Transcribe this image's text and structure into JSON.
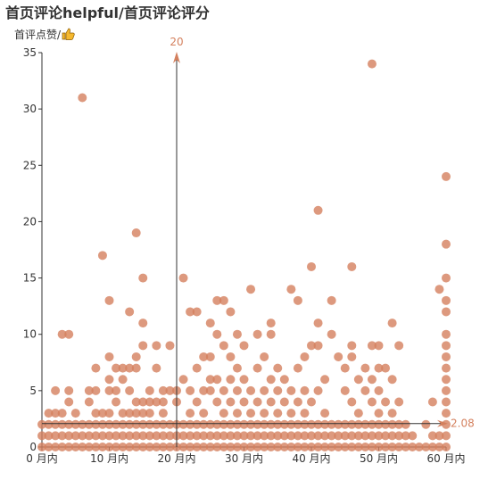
{
  "chart_data": {
    "type": "scatter",
    "title": "首页评论helpful/首页评论评分",
    "ylabel": "首评点赞/",
    "ylabel_icon": "thumbs-up-icon",
    "xlabel": "",
    "x_tick_labels": [
      "0 月内",
      "10 月内",
      "20 月内",
      "30 月内",
      "40 月内",
      "50 月内",
      "60 月内"
    ],
    "xlim": [
      0,
      60
    ],
    "ylim": [
      0,
      35
    ],
    "y_ticks": [
      0,
      5,
      10,
      15,
      20,
      25,
      30,
      35
    ],
    "grid": false,
    "point_color": "#d4805e",
    "mark_lines": [
      {
        "axis": "x",
        "value": 20,
        "label": "20"
      },
      {
        "axis": "y",
        "value": 2.08,
        "label": "2.08"
      }
    ],
    "points": [
      [
        0,
        0
      ],
      [
        0,
        1
      ],
      [
        0,
        2
      ],
      [
        1,
        0
      ],
      [
        1,
        1
      ],
      [
        1,
        2
      ],
      [
        1,
        3
      ],
      [
        2,
        0
      ],
      [
        2,
        1
      ],
      [
        2,
        2
      ],
      [
        2,
        3
      ],
      [
        2,
        5
      ],
      [
        3,
        0
      ],
      [
        3,
        1
      ],
      [
        3,
        2
      ],
      [
        3,
        3
      ],
      [
        3,
        10
      ],
      [
        4,
        0
      ],
      [
        4,
        1
      ],
      [
        4,
        2
      ],
      [
        4,
        4
      ],
      [
        4,
        5
      ],
      [
        4,
        10
      ],
      [
        5,
        0
      ],
      [
        5,
        1
      ],
      [
        5,
        2
      ],
      [
        5,
        3
      ],
      [
        6,
        0
      ],
      [
        6,
        1
      ],
      [
        6,
        2
      ],
      [
        6,
        31
      ],
      [
        7,
        0
      ],
      [
        7,
        1
      ],
      [
        7,
        2
      ],
      [
        7,
        4
      ],
      [
        7,
        5
      ],
      [
        8,
        0
      ],
      [
        8,
        1
      ],
      [
        8,
        2
      ],
      [
        8,
        3
      ],
      [
        8,
        5
      ],
      [
        8,
        7
      ],
      [
        9,
        0
      ],
      [
        9,
        1
      ],
      [
        9,
        2
      ],
      [
        9,
        3
      ],
      [
        9,
        17
      ],
      [
        10,
        0
      ],
      [
        10,
        1
      ],
      [
        10,
        2
      ],
      [
        10,
        3
      ],
      [
        10,
        5
      ],
      [
        10,
        6
      ],
      [
        10,
        8
      ],
      [
        10,
        13
      ],
      [
        11,
        0
      ],
      [
        11,
        1
      ],
      [
        11,
        2
      ],
      [
        11,
        4
      ],
      [
        11,
        5
      ],
      [
        11,
        7
      ],
      [
        12,
        0
      ],
      [
        12,
        1
      ],
      [
        12,
        2
      ],
      [
        12,
        3
      ],
      [
        12,
        6
      ],
      [
        12,
        7
      ],
      [
        13,
        0
      ],
      [
        13,
        1
      ],
      [
        13,
        2
      ],
      [
        13,
        3
      ],
      [
        13,
        5
      ],
      [
        13,
        7
      ],
      [
        13,
        12
      ],
      [
        14,
        0
      ],
      [
        14,
        1
      ],
      [
        14,
        2
      ],
      [
        14,
        3
      ],
      [
        14,
        4
      ],
      [
        14,
        7
      ],
      [
        14,
        8
      ],
      [
        14,
        19
      ],
      [
        15,
        0
      ],
      [
        15,
        1
      ],
      [
        15,
        2
      ],
      [
        15,
        3
      ],
      [
        15,
        4
      ],
      [
        15,
        9
      ],
      [
        15,
        11
      ],
      [
        15,
        15
      ],
      [
        16,
        0
      ],
      [
        16,
        1
      ],
      [
        16,
        2
      ],
      [
        16,
        3
      ],
      [
        16,
        4
      ],
      [
        16,
        5
      ],
      [
        17,
        0
      ],
      [
        17,
        1
      ],
      [
        17,
        2
      ],
      [
        17,
        4
      ],
      [
        17,
        7
      ],
      [
        17,
        9
      ],
      [
        18,
        0
      ],
      [
        18,
        1
      ],
      [
        18,
        2
      ],
      [
        18,
        3
      ],
      [
        18,
        4
      ],
      [
        18,
        5
      ],
      [
        19,
        0
      ],
      [
        19,
        1
      ],
      [
        19,
        2
      ],
      [
        19,
        5
      ],
      [
        19,
        9
      ],
      [
        20,
        0
      ],
      [
        20,
        1
      ],
      [
        20,
        2
      ],
      [
        20,
        4
      ],
      [
        20,
        5
      ],
      [
        21,
        0
      ],
      [
        21,
        1
      ],
      [
        21,
        2
      ],
      [
        21,
        6
      ],
      [
        21,
        15
      ],
      [
        22,
        0
      ],
      [
        22,
        1
      ],
      [
        22,
        2
      ],
      [
        22,
        3
      ],
      [
        22,
        5
      ],
      [
        22,
        12
      ],
      [
        23,
        0
      ],
      [
        23,
        1
      ],
      [
        23,
        2
      ],
      [
        23,
        4
      ],
      [
        23,
        7
      ],
      [
        23,
        12
      ],
      [
        24,
        0
      ],
      [
        24,
        1
      ],
      [
        24,
        2
      ],
      [
        24,
        3
      ],
      [
        24,
        5
      ],
      [
        24,
        8
      ],
      [
        25,
        0
      ],
      [
        25,
        1
      ],
      [
        25,
        2
      ],
      [
        25,
        5
      ],
      [
        25,
        6
      ],
      [
        25,
        8
      ],
      [
        25,
        11
      ],
      [
        26,
        0
      ],
      [
        26,
        1
      ],
      [
        26,
        2
      ],
      [
        26,
        4
      ],
      [
        26,
        6
      ],
      [
        26,
        10
      ],
      [
        26,
        13
      ],
      [
        27,
        0
      ],
      [
        27,
        1
      ],
      [
        27,
        2
      ],
      [
        27,
        3
      ],
      [
        27,
        5
      ],
      [
        27,
        9
      ],
      [
        27,
        13
      ],
      [
        28,
        0
      ],
      [
        28,
        1
      ],
      [
        28,
        2
      ],
      [
        28,
        4
      ],
      [
        28,
        6
      ],
      [
        28,
        8
      ],
      [
        28,
        12
      ],
      [
        29,
        0
      ],
      [
        29,
        1
      ],
      [
        29,
        2
      ],
      [
        29,
        3
      ],
      [
        29,
        5
      ],
      [
        29,
        7
      ],
      [
        29,
        10
      ],
      [
        30,
        0
      ],
      [
        30,
        1
      ],
      [
        30,
        2
      ],
      [
        30,
        4
      ],
      [
        30,
        6
      ],
      [
        30,
        9
      ],
      [
        31,
        0
      ],
      [
        31,
        1
      ],
      [
        31,
        2
      ],
      [
        31,
        3
      ],
      [
        31,
        5
      ],
      [
        31,
        14
      ],
      [
        32,
        0
      ],
      [
        32,
        1
      ],
      [
        32,
        2
      ],
      [
        32,
        4
      ],
      [
        32,
        7
      ],
      [
        32,
        10
      ],
      [
        33,
        0
      ],
      [
        33,
        1
      ],
      [
        33,
        2
      ],
      [
        33,
        3
      ],
      [
        33,
        5
      ],
      [
        33,
        8
      ],
      [
        34,
        0
      ],
      [
        34,
        1
      ],
      [
        34,
        2
      ],
      [
        34,
        4
      ],
      [
        34,
        6
      ],
      [
        34,
        10
      ],
      [
        34,
        11
      ],
      [
        35,
        0
      ],
      [
        35,
        1
      ],
      [
        35,
        2
      ],
      [
        35,
        3
      ],
      [
        35,
        5
      ],
      [
        35,
        7
      ],
      [
        36,
        0
      ],
      [
        36,
        1
      ],
      [
        36,
        2
      ],
      [
        36,
        4
      ],
      [
        36,
        6
      ],
      [
        37,
        0
      ],
      [
        37,
        1
      ],
      [
        37,
        2
      ],
      [
        37,
        3
      ],
      [
        37,
        5
      ],
      [
        37,
        14
      ],
      [
        38,
        0
      ],
      [
        38,
        1
      ],
      [
        38,
        2
      ],
      [
        38,
        4
      ],
      [
        38,
        7
      ],
      [
        38,
        13
      ],
      [
        39,
        0
      ],
      [
        39,
        1
      ],
      [
        39,
        2
      ],
      [
        39,
        3
      ],
      [
        39,
        5
      ],
      [
        39,
        8
      ],
      [
        40,
        0
      ],
      [
        40,
        1
      ],
      [
        40,
        2
      ],
      [
        40,
        4
      ],
      [
        40,
        9
      ],
      [
        40,
        16
      ],
      [
        41,
        0
      ],
      [
        41,
        1
      ],
      [
        41,
        2
      ],
      [
        41,
        5
      ],
      [
        41,
        9
      ],
      [
        41,
        11
      ],
      [
        41,
        21
      ],
      [
        42,
        0
      ],
      [
        42,
        1
      ],
      [
        42,
        2
      ],
      [
        42,
        3
      ],
      [
        42,
        6
      ],
      [
        43,
        0
      ],
      [
        43,
        1
      ],
      [
        43,
        2
      ],
      [
        43,
        10
      ],
      [
        43,
        13
      ],
      [
        44,
        0
      ],
      [
        44,
        1
      ],
      [
        44,
        2
      ],
      [
        44,
        8
      ],
      [
        45,
        0
      ],
      [
        45,
        1
      ],
      [
        45,
        2
      ],
      [
        45,
        5
      ],
      [
        45,
        7
      ],
      [
        46,
        0
      ],
      [
        46,
        1
      ],
      [
        46,
        2
      ],
      [
        46,
        4
      ],
      [
        46,
        8
      ],
      [
        46,
        9
      ],
      [
        46,
        16
      ],
      [
        47,
        0
      ],
      [
        47,
        1
      ],
      [
        47,
        2
      ],
      [
        47,
        3
      ],
      [
        47,
        6
      ],
      [
        48,
        0
      ],
      [
        48,
        1
      ],
      [
        48,
        2
      ],
      [
        48,
        5
      ],
      [
        48,
        7
      ],
      [
        49,
        0
      ],
      [
        49,
        1
      ],
      [
        49,
        2
      ],
      [
        49,
        4
      ],
      [
        49,
        6
      ],
      [
        49,
        9
      ],
      [
        49,
        34
      ],
      [
        50,
        0
      ],
      [
        50,
        1
      ],
      [
        50,
        2
      ],
      [
        50,
        3
      ],
      [
        50,
        5
      ],
      [
        50,
        7
      ],
      [
        50,
        9
      ],
      [
        51,
        0
      ],
      [
        51,
        1
      ],
      [
        51,
        2
      ],
      [
        51,
        4
      ],
      [
        51,
        7
      ],
      [
        52,
        0
      ],
      [
        52,
        1
      ],
      [
        52,
        2
      ],
      [
        52,
        3
      ],
      [
        52,
        6
      ],
      [
        52,
        11
      ],
      [
        53,
        0
      ],
      [
        53,
        1
      ],
      [
        53,
        2
      ],
      [
        53,
        4
      ],
      [
        53,
        9
      ],
      [
        54,
        0
      ],
      [
        54,
        1
      ],
      [
        54,
        2
      ],
      [
        55,
        0
      ],
      [
        55,
        1
      ],
      [
        56,
        0
      ],
      [
        57,
        0
      ],
      [
        57,
        2
      ],
      [
        58,
        0
      ],
      [
        58,
        1
      ],
      [
        58,
        4
      ],
      [
        59,
        0
      ],
      [
        59,
        1
      ],
      [
        59,
        14
      ],
      [
        60,
        0
      ],
      [
        60,
        1
      ],
      [
        60,
        2
      ],
      [
        60,
        3
      ],
      [
        60,
        4
      ],
      [
        60,
        5
      ],
      [
        60,
        6
      ],
      [
        60,
        7
      ],
      [
        60,
        8
      ],
      [
        60,
        9
      ],
      [
        60,
        10
      ],
      [
        60,
        12
      ],
      [
        60,
        13
      ],
      [
        60,
        15
      ],
      [
        60,
        18
      ],
      [
        60,
        24
      ]
    ]
  }
}
